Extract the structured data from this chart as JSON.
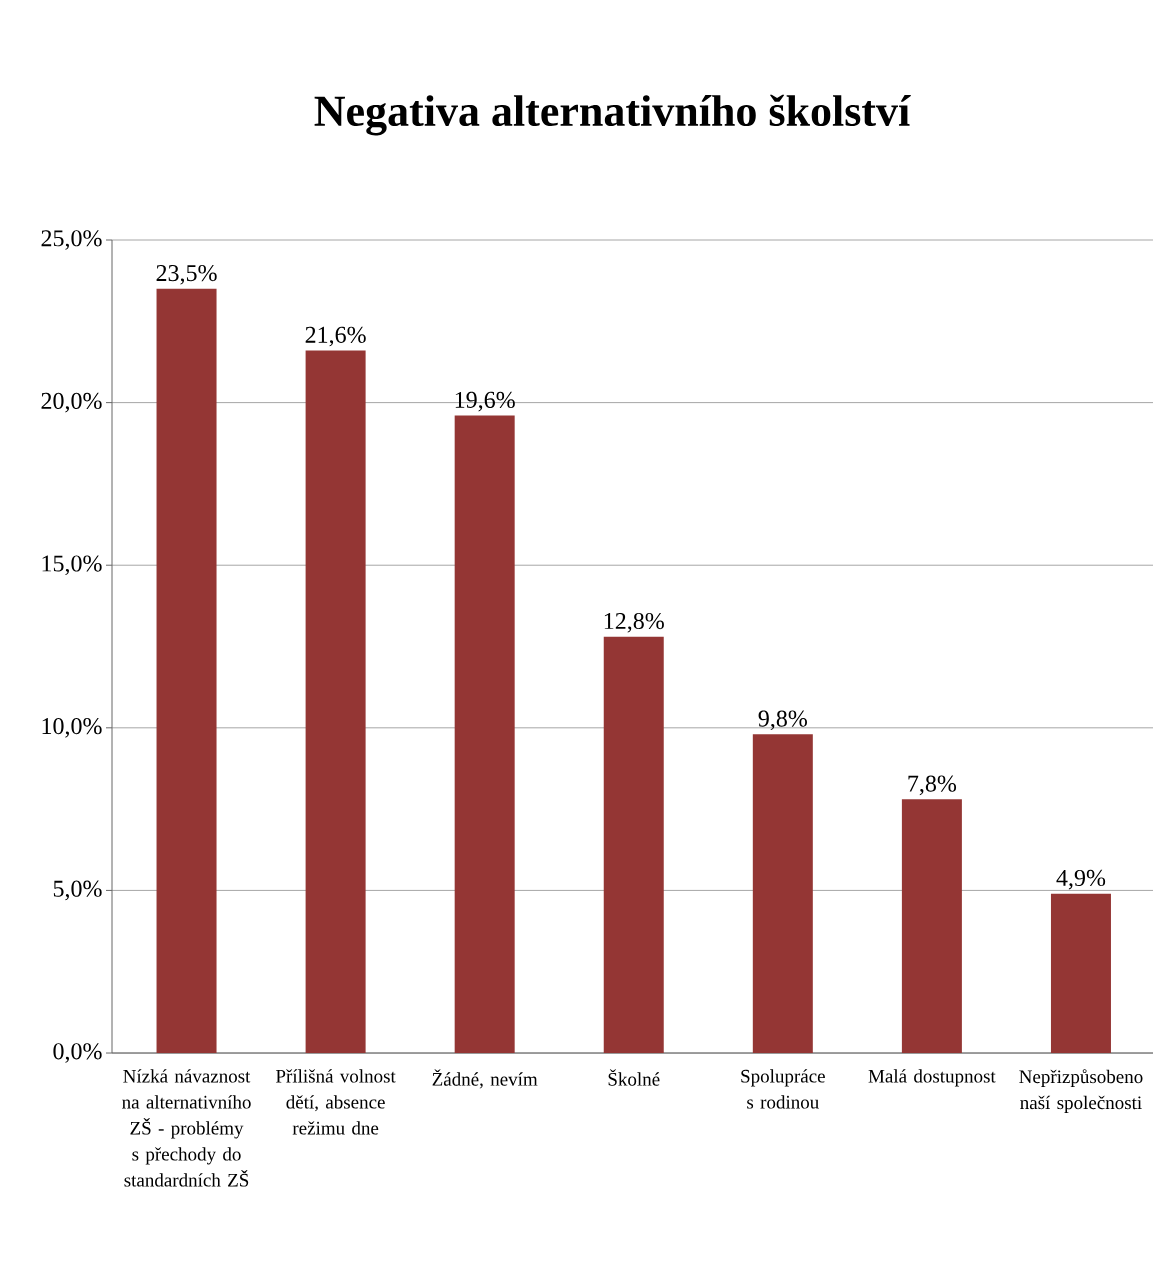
{
  "chart_data": {
    "type": "bar",
    "title": "Negativa alternativního školství",
    "categories": [
      "Nízká návaznost na alternativního ZŠ - problémy s přechody do standardních ZŠ",
      "Přílišná volnost dětí, absence režimu dne",
      "Žádné, nevím",
      "Školné",
      "Spolupráce s rodinou",
      "Malá dostupnost",
      "Nepřizpůsobeno naší společnosti"
    ],
    "values": [
      23.5,
      21.6,
      19.6,
      12.8,
      9.8,
      7.8,
      4.9
    ],
    "value_labels": [
      "23,5%",
      "21,6%",
      "19,6%",
      "12,8%",
      "9,8%",
      "7,8%",
      "4,9%"
    ],
    "color": "#943634",
    "ylim": [
      0,
      25
    ],
    "yticks": [
      {
        "value": 0,
        "label": "0,0%"
      },
      {
        "value": 5,
        "label": "5,0%"
      },
      {
        "value": 10,
        "label": "10,0%"
      },
      {
        "value": 15,
        "label": "15,0%"
      },
      {
        "value": 20,
        "label": "20,0%"
      },
      {
        "value": 25,
        "label": "25,0%"
      }
    ],
    "grid": "y"
  }
}
